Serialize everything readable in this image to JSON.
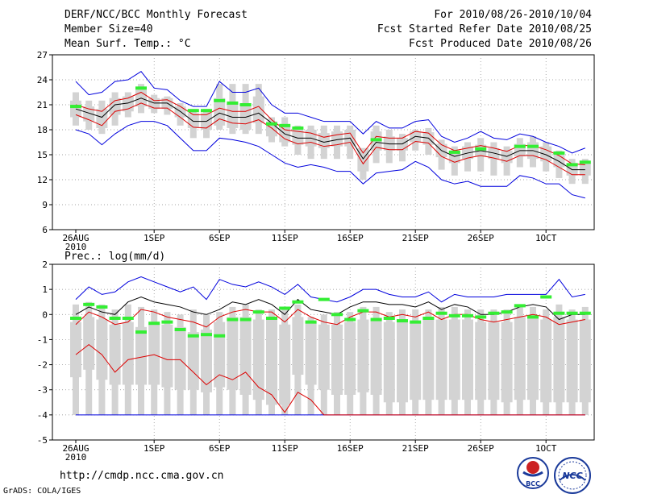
{
  "header": {
    "title": "DERF/NCC/BCC Monthly Forecast",
    "member_size": "Member Size=40",
    "variable": "Mean Surf. Temp.: °C",
    "period": "For 2010/08/26-2010/10/04",
    "started": "Fcst Started Refer Date 2010/08/25",
    "produced": "Fcst Produced Date 2010/08/26"
  },
  "footer": {
    "url": "http://cmdp.ncc.cma.gov.cn",
    "grads": "GrADS: COLA/IGES",
    "logo_bcc": "BCC",
    "logo_ncc": "NCC"
  },
  "colors": {
    "box": "#d3d3d3",
    "green": "#33ee33",
    "envelope": "#0000dd",
    "spread": "#dd0000",
    "mean": "#000000"
  },
  "chart_data": [
    {
      "type": "box",
      "title": "Mean Surf. Temp.: °C",
      "x_tick_labels": [
        "26AUG",
        "1SEP",
        "6SEP",
        "11SEP",
        "16SEP",
        "21SEP",
        "26SEP",
        "1OCT"
      ],
      "x_year_label": "2010",
      "x_tick_days": [
        1,
        7,
        12,
        17,
        22,
        27,
        32,
        37
      ],
      "x_range_days": [
        1,
        40
      ],
      "ylim": [
        6,
        27
      ],
      "y_ticks": [
        6,
        9,
        12,
        15,
        18,
        21,
        24,
        27
      ],
      "series": {
        "mean": [
          20.5,
          20.0,
          19.5,
          21.0,
          21.2,
          21.8,
          21.2,
          21.2,
          20.2,
          19.0,
          19.0,
          20.0,
          19.5,
          19.5,
          20.0,
          18.8,
          17.5,
          17.0,
          17.0,
          16.5,
          16.8,
          17.0,
          14.5,
          16.5,
          16.3,
          16.3,
          17.2,
          17.0,
          15.5,
          14.8,
          15.2,
          15.5,
          15.2,
          14.8,
          15.5,
          15.5,
          15.0,
          14.2,
          13.2,
          13.2
        ],
        "max": [
          23.8,
          22.2,
          22.5,
          23.8,
          24.0,
          25.0,
          23.0,
          22.8,
          21.5,
          20.8,
          20.8,
          23.8,
          22.5,
          22.5,
          23.0,
          21.0,
          20.0,
          20.0,
          19.5,
          19.0,
          19.0,
          19.0,
          17.5,
          19.0,
          18.2,
          18.2,
          19.0,
          19.2,
          17.2,
          16.5,
          17.0,
          17.8,
          17.0,
          16.8,
          17.5,
          17.2,
          16.5,
          16.0,
          15.2,
          15.8
        ],
        "min": [
          18.0,
          17.5,
          16.2,
          17.5,
          18.5,
          19.0,
          19.0,
          18.5,
          17.0,
          15.5,
          15.5,
          17.0,
          16.8,
          16.5,
          16.0,
          15.0,
          14.0,
          13.5,
          13.8,
          13.5,
          13.0,
          13.0,
          11.5,
          12.8,
          13.0,
          13.2,
          14.2,
          13.5,
          12.0,
          11.5,
          11.8,
          11.2,
          11.2,
          11.2,
          12.5,
          12.2,
          11.5,
          11.5,
          10.2,
          9.8
        ],
        "upper": [
          21.0,
          20.5,
          20.2,
          21.5,
          21.8,
          22.5,
          21.5,
          21.6,
          20.8,
          19.8,
          19.8,
          20.6,
          20.2,
          20.2,
          20.8,
          19.2,
          18.0,
          17.8,
          17.6,
          17.1,
          17.4,
          17.6,
          15.2,
          17.2,
          17.0,
          17.0,
          17.8,
          17.6,
          16.2,
          15.5,
          15.8,
          16.1,
          15.8,
          15.4,
          16.1,
          16.1,
          15.6,
          14.9,
          13.9,
          13.8
        ],
        "lower": [
          19.8,
          19.2,
          18.5,
          20.2,
          20.5,
          21.2,
          20.6,
          20.6,
          19.5,
          18.3,
          18.2,
          19.3,
          18.8,
          18.7,
          19.2,
          18.2,
          16.9,
          16.3,
          16.5,
          16.0,
          16.2,
          16.5,
          13.9,
          15.9,
          15.6,
          15.6,
          16.6,
          16.4,
          14.8,
          14.1,
          14.6,
          14.9,
          14.6,
          14.2,
          14.9,
          14.9,
          14.4,
          13.5,
          12.6,
          12.6
        ],
        "box_high": [
          22.5,
          21.5,
          21.5,
          22.5,
          22.5,
          23.5,
          22.2,
          22.0,
          21.2,
          20.5,
          20.5,
          23.5,
          23.5,
          23.5,
          23.5,
          19.5,
          19.5,
          18.5,
          18.5,
          18.5,
          18.5,
          18.5,
          15.5,
          18.5,
          18.0,
          17.5,
          18.0,
          18.2,
          16.8,
          16.0,
          16.5,
          17.0,
          16.5,
          16.0,
          17.0,
          17.2,
          16.5,
          15.5,
          14.5,
          14.5
        ],
        "box_q3": [
          21.5,
          20.8,
          20.5,
          21.8,
          22.0,
          22.8,
          21.8,
          21.8,
          20.8,
          20.0,
          20.0,
          21.8,
          21.2,
          21.2,
          22.0,
          19.0,
          18.6,
          18.2,
          18.0,
          17.6,
          17.8,
          18.0,
          15.8,
          17.8,
          17.2,
          17.0,
          17.8,
          17.7,
          16.3,
          15.5,
          16.0,
          16.2,
          15.8,
          15.5,
          16.3,
          16.5,
          16.0,
          15.0,
          14.0,
          14.0
        ],
        "box_q1": [
          19.5,
          19.0,
          18.2,
          19.8,
          20.2,
          20.8,
          20.5,
          20.5,
          19.5,
          18.2,
          18.0,
          18.5,
          18.2,
          18.0,
          18.8,
          17.2,
          16.5,
          16.2,
          16.0,
          15.8,
          16.0,
          16.0,
          13.0,
          15.5,
          15.5,
          15.5,
          16.5,
          16.2,
          14.7,
          14.0,
          14.5,
          14.8,
          14.5,
          14.0,
          14.8,
          14.5,
          14.2,
          13.5,
          12.5,
          12.5
        ],
        "box_low": [
          18.5,
          18.0,
          17.5,
          18.5,
          19.5,
          20.0,
          20.0,
          19.8,
          18.5,
          17.0,
          17.0,
          18.0,
          17.5,
          17.5,
          17.5,
          16.5,
          16.0,
          15.0,
          14.5,
          14.5,
          14.5,
          14.5,
          12.0,
          14.0,
          14.0,
          14.2,
          15.5,
          15.0,
          13.2,
          12.5,
          13.0,
          13.0,
          12.5,
          12.5,
          13.5,
          13.5,
          13.0,
          12.2,
          11.5,
          11.5
        ],
        "green": [
          20.8,
          null,
          null,
          null,
          null,
          23.0,
          null,
          null,
          null,
          20.3,
          20.3,
          21.5,
          21.2,
          21.0,
          null,
          18.7,
          18.5,
          18.2,
          null,
          null,
          null,
          null,
          null,
          16.8,
          null,
          null,
          null,
          null,
          null,
          15.3,
          null,
          15.7,
          null,
          null,
          16.0,
          16.0,
          null,
          15.2,
          13.8,
          14.1
        ]
      }
    },
    {
      "type": "box",
      "title": "Prec.: log(mm/d)",
      "x_tick_labels": [
        "26AUG",
        "1SEP",
        "6SEP",
        "11SEP",
        "16SEP",
        "21SEP",
        "26SEP",
        "1OCT"
      ],
      "x_year_label": "2010",
      "x_tick_days": [
        1,
        7,
        12,
        17,
        22,
        27,
        32,
        37
      ],
      "x_range_days": [
        1,
        40
      ],
      "ylim": [
        -5,
        2
      ],
      "y_ticks": [
        -5,
        -4,
        -3,
        -2,
        -1,
        0,
        1,
        2
      ],
      "series": {
        "mean": [
          0.0,
          0.3,
          0.1,
          0.0,
          0.5,
          0.7,
          0.5,
          0.4,
          0.3,
          0.1,
          0.0,
          0.2,
          0.5,
          0.4,
          0.6,
          0.4,
          0.0,
          0.6,
          0.2,
          0.1,
          0.0,
          0.3,
          0.5,
          0.5,
          0.4,
          0.4,
          0.3,
          0.5,
          0.2,
          0.4,
          0.3,
          0.0,
          0.0,
          0.1,
          0.3,
          0.4,
          0.3,
          -0.2,
          0.0,
          0.0
        ],
        "max": [
          0.6,
          1.1,
          0.8,
          0.9,
          1.3,
          1.5,
          1.3,
          1.1,
          0.9,
          1.1,
          0.6,
          1.4,
          1.2,
          1.1,
          1.3,
          1.1,
          0.8,
          1.2,
          0.7,
          0.6,
          0.5,
          0.7,
          1.0,
          1.0,
          0.8,
          0.7,
          0.7,
          0.9,
          0.5,
          0.8,
          0.7,
          0.7,
          0.7,
          0.8,
          0.8,
          0.8,
          0.8,
          1.4,
          0.7,
          0.8
        ],
        "min": [
          -4,
          -4,
          -4,
          -4,
          -4,
          -4,
          -4,
          -4,
          -4,
          -4,
          -4,
          -4,
          -4,
          -4,
          -4,
          -4,
          -4,
          -4,
          -4,
          -4,
          -4,
          -4,
          -4,
          -4,
          -4,
          -4,
          -4,
          -4,
          -4,
          -4,
          -4,
          -4,
          -4,
          -4,
          -4,
          -4,
          -4,
          -4,
          -4,
          -4
        ],
        "upper": [
          -0.4,
          0.1,
          -0.1,
          -0.4,
          -0.3,
          0.2,
          0.1,
          -0.1,
          -0.2,
          -0.3,
          -0.5,
          -0.1,
          0.1,
          0.2,
          0.1,
          0.1,
          -0.3,
          0.2,
          -0.1,
          -0.3,
          -0.4,
          -0.1,
          0.1,
          0.1,
          -0.1,
          0.0,
          -0.1,
          0.1,
          -0.2,
          0.0,
          0.0,
          -0.2,
          -0.3,
          -0.2,
          -0.1,
          0.0,
          -0.1,
          -0.4,
          -0.3,
          -0.2
        ],
        "lower": [
          -1.6,
          -1.2,
          -1.6,
          -2.3,
          -1.8,
          -1.7,
          -1.6,
          -1.8,
          -1.8,
          -2.3,
          -2.8,
          -2.4,
          -2.6,
          -2.3,
          -2.9,
          -3.2,
          -3.9,
          -3.1,
          -3.4,
          -4.0,
          -4.0,
          -4.0,
          -4.0,
          -4.0,
          -4.0,
          -4.0,
          -4.0,
          -4.0,
          -4.0,
          -4.0,
          -4.0,
          -4.0,
          -4.0,
          -4.0,
          -4.0,
          -4.0,
          -4.0,
          -4.0,
          -4.0,
          -4.0
        ],
        "box_high": [
          0.4,
          0.5,
          0.4,
          0.2,
          0.4,
          0.3,
          0.2,
          0.1,
          0.0,
          0.2,
          0.0,
          0.1,
          0.3,
          0.4,
          0.2,
          0.2,
          0.2,
          0.4,
          -0.1,
          0.0,
          0.1,
          0.1,
          0.3,
          0.3,
          0.1,
          0.2,
          0.2,
          0.2,
          0.3,
          0.3,
          0.2,
          0.2,
          0.2,
          0.2,
          0.3,
          0.3,
          0.2,
          0.4,
          0.2,
          0.3
        ],
        "box_q3": [
          -0.3,
          -0.1,
          -0.2,
          -0.4,
          -0.3,
          -0.5,
          -0.4,
          -0.4,
          -0.5,
          -0.7,
          -0.6,
          -0.3,
          -0.1,
          -0.1,
          -0.2,
          -0.2,
          -0.4,
          -0.1,
          -0.3,
          -0.4,
          -0.4,
          -0.3,
          -0.2,
          -0.2,
          -0.3,
          -0.3,
          -0.3,
          -0.2,
          -0.2,
          -0.2,
          -0.2,
          -0.3,
          -0.3,
          -0.3,
          -0.1,
          -0.1,
          -0.2,
          -0.1,
          -0.2,
          -0.2
        ],
        "box_q1": [
          -2.5,
          -2.2,
          -2.6,
          -2.8,
          -2.8,
          -2.8,
          -2.8,
          -2.9,
          -3.0,
          -3.0,
          -3.1,
          -2.9,
          -3.0,
          -3.2,
          -3.4,
          -3.6,
          -3.6,
          -2.4,
          -2.8,
          -3.0,
          -3.2,
          -3.2,
          -3.1,
          -3.2,
          -3.5,
          -3.5,
          -3.4,
          -3.4,
          -3.4,
          -3.4,
          -3.4,
          -3.4,
          -3.4,
          -3.5,
          -3.4,
          -3.4,
          -3.5,
          -3.5,
          -3.5,
          -3.5
        ],
        "box_low": [
          -4,
          -4,
          -4,
          -4,
          -4,
          -4,
          -4,
          -4,
          -4,
          -4,
          -4,
          -4,
          -4,
          -4,
          -4,
          -4,
          -4,
          -4,
          -4,
          -4,
          -4,
          -4,
          -4,
          -4,
          -4,
          -4,
          -4,
          -4,
          -4,
          -4,
          -4,
          -4,
          -4,
          -4,
          -4,
          -4,
          -4,
          -4,
          -4,
          -4
        ],
        "green": [
          -0.15,
          0.4,
          0.3,
          -0.15,
          -0.15,
          -0.7,
          -0.35,
          -0.3,
          -0.6,
          -0.85,
          -0.8,
          -0.85,
          -0.2,
          -0.2,
          0.1,
          -0.15,
          0.25,
          0.5,
          -0.3,
          0.6,
          0.0,
          -0.2,
          0.15,
          -0.2,
          -0.15,
          -0.25,
          -0.3,
          -0.15,
          0.05,
          -0.05,
          -0.05,
          -0.1,
          0.05,
          0.1,
          0.35,
          -0.1,
          0.7,
          0.05,
          0.05,
          0.05
        ]
      }
    }
  ]
}
